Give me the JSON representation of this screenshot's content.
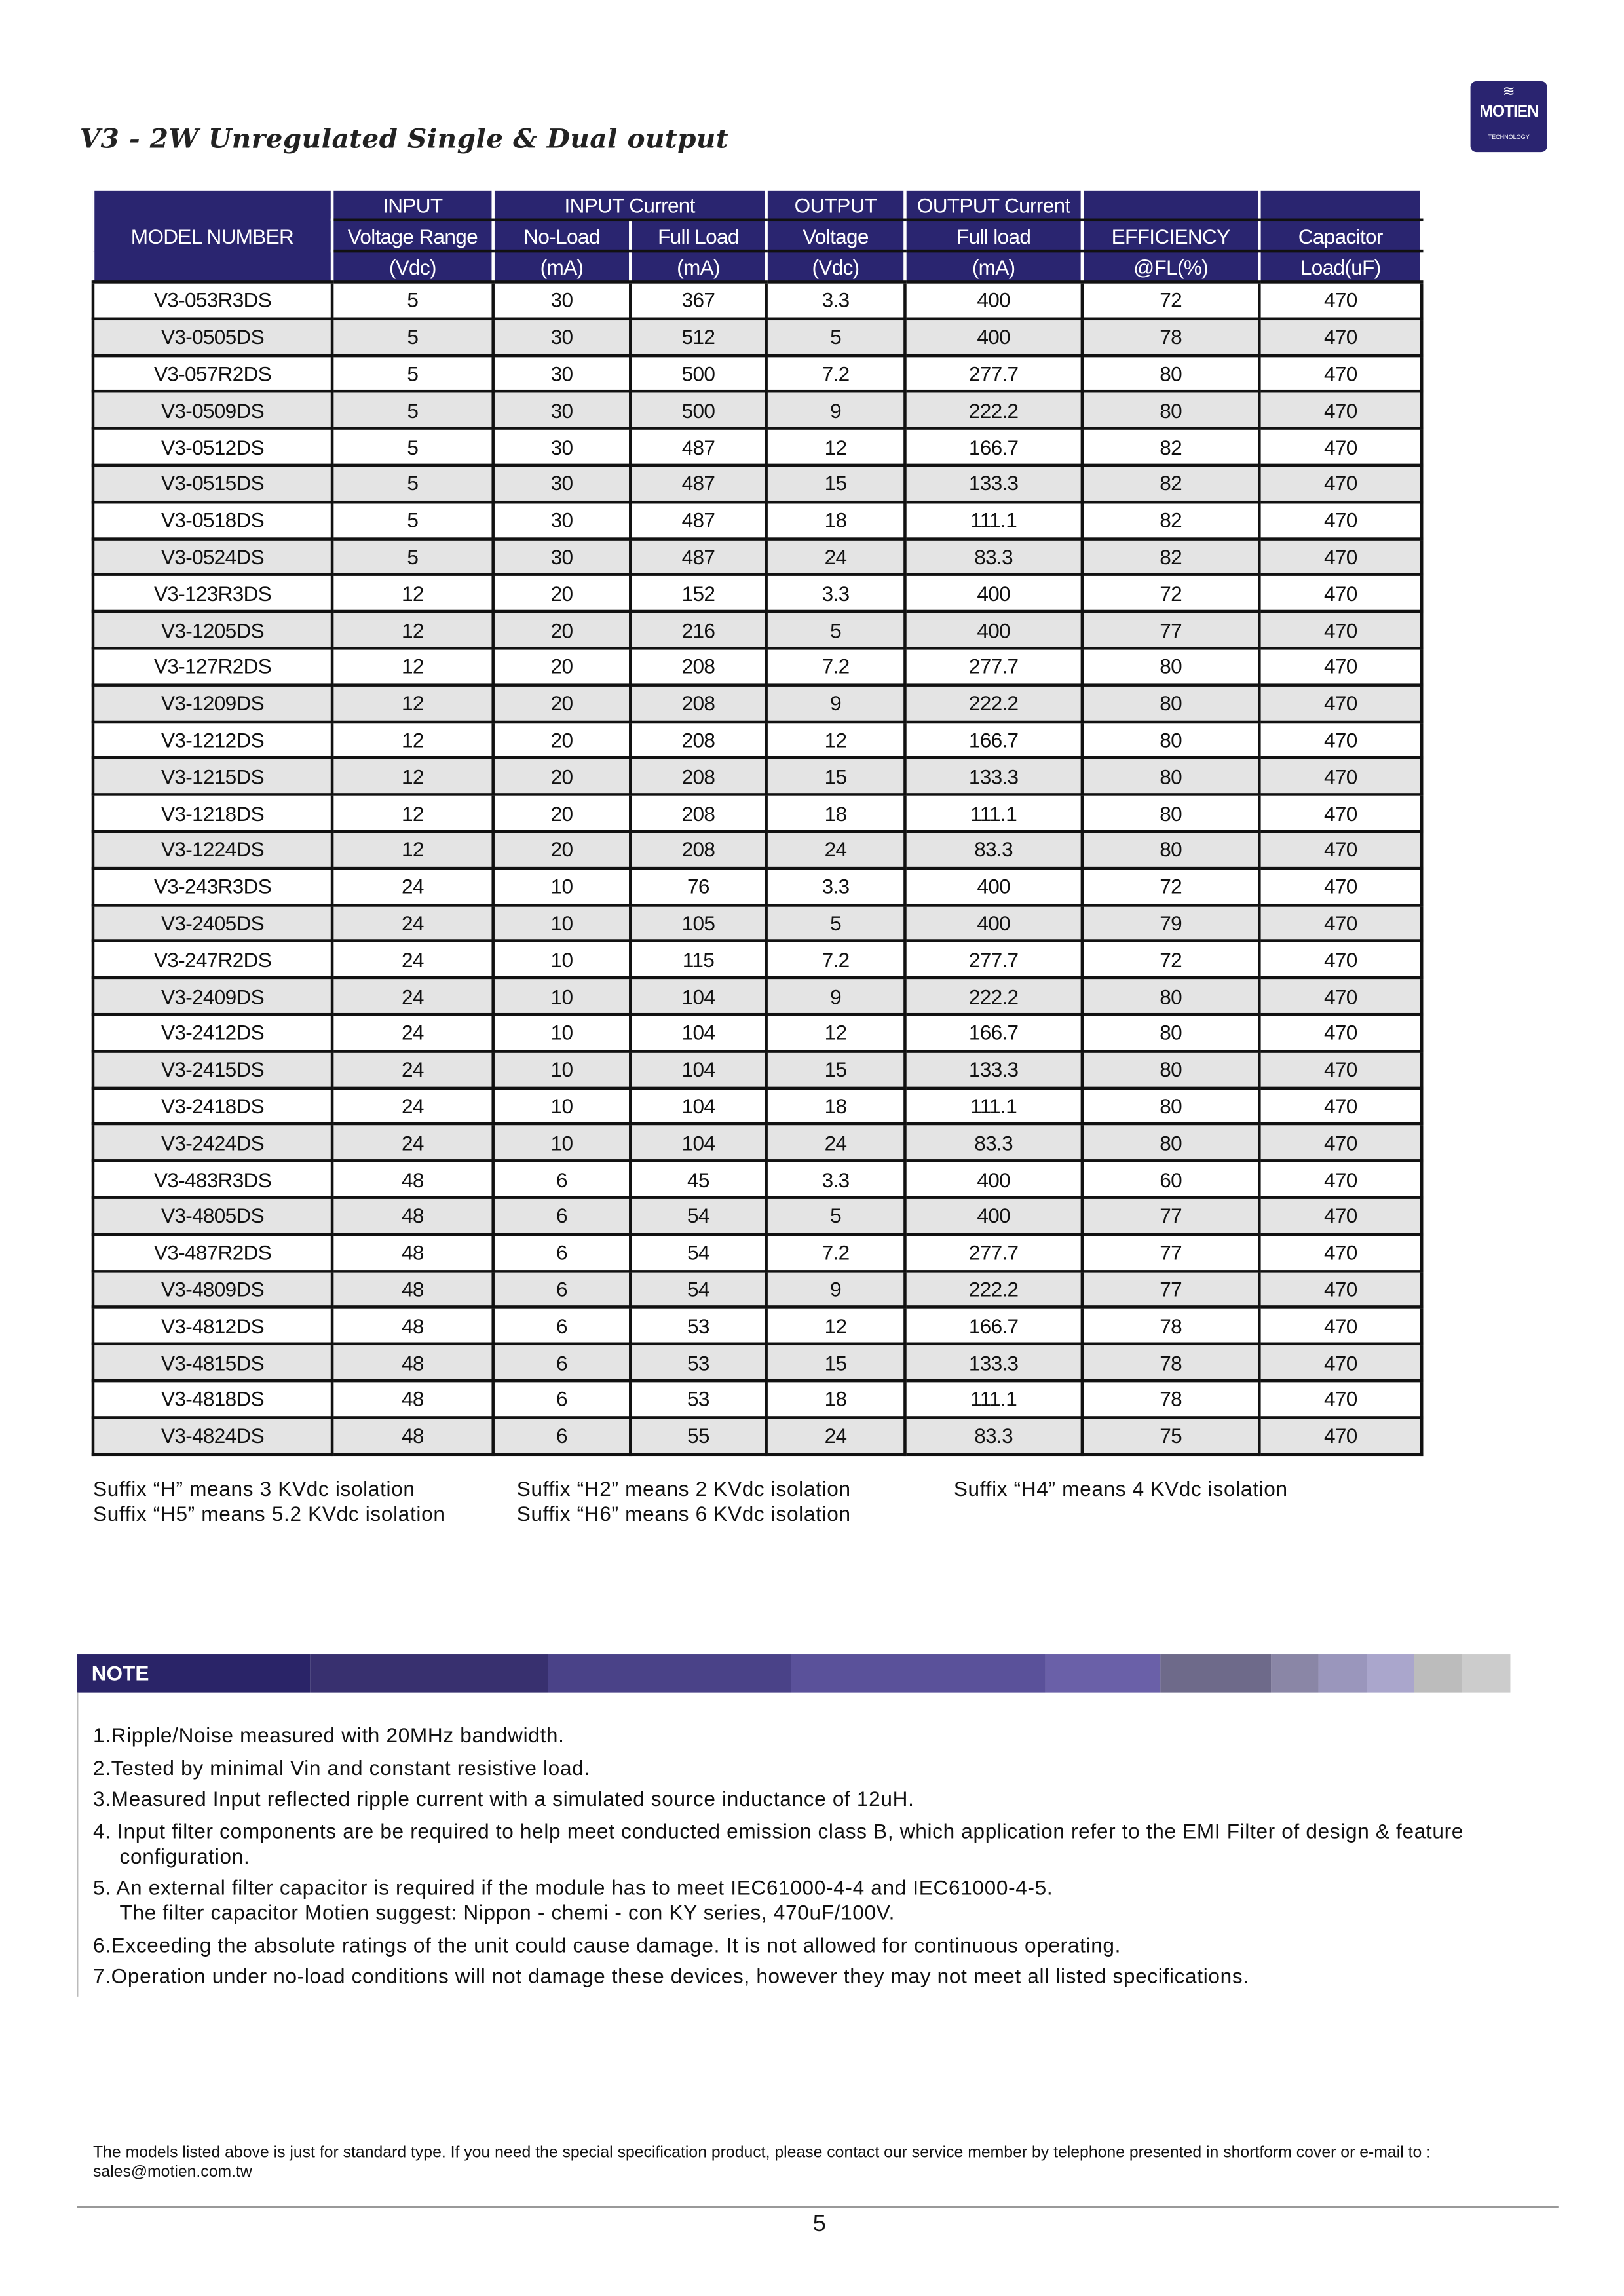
{
  "title": "V3 - 2W Unregulated Single & Dual output",
  "logo": {
    "text": "MOTIEN",
    "sub": "TECHNOLOGY"
  },
  "table": {
    "header_row1": [
      "INPUT",
      "INPUT Current",
      "OUTPUT",
      "OUTPUT Current",
      "",
      ""
    ],
    "header_row2": [
      "MODEL NUMBER",
      "Voltage Range",
      "No-Load",
      "Full Load",
      "Voltage",
      "Full load",
      "EFFICIENCY",
      "Capacitor"
    ],
    "header_row3": [
      "(Vdc)",
      "(mA)",
      "(mA)",
      "(Vdc)",
      "(mA)",
      "@FL(%)",
      "Load(uF)"
    ],
    "rows": [
      [
        "V3-053R3DS",
        "5",
        "30",
        "367",
        "3.3",
        "400",
        "72",
        "470"
      ],
      [
        "V3-0505DS",
        "5",
        "30",
        "512",
        "5",
        "400",
        "78",
        "470"
      ],
      [
        "V3-057R2DS",
        "5",
        "30",
        "500",
        "7.2",
        "277.7",
        "80",
        "470"
      ],
      [
        "V3-0509DS",
        "5",
        "30",
        "500",
        "9",
        "222.2",
        "80",
        "470"
      ],
      [
        "V3-0512DS",
        "5",
        "30",
        "487",
        "12",
        "166.7",
        "82",
        "470"
      ],
      [
        "V3-0515DS",
        "5",
        "30",
        "487",
        "15",
        "133.3",
        "82",
        "470"
      ],
      [
        "V3-0518DS",
        "5",
        "30",
        "487",
        "18",
        "111.1",
        "82",
        "470"
      ],
      [
        "V3-0524DS",
        "5",
        "30",
        "487",
        "24",
        "83.3",
        "82",
        "470"
      ],
      [
        "V3-123R3DS",
        "12",
        "20",
        "152",
        "3.3",
        "400",
        "72",
        "470"
      ],
      [
        "V3-1205DS",
        "12",
        "20",
        "216",
        "5",
        "400",
        "77",
        "470"
      ],
      [
        "V3-127R2DS",
        "12",
        "20",
        "208",
        "7.2",
        "277.7",
        "80",
        "470"
      ],
      [
        "V3-1209DS",
        "12",
        "20",
        "208",
        "9",
        "222.2",
        "80",
        "470"
      ],
      [
        "V3-1212DS",
        "12",
        "20",
        "208",
        "12",
        "166.7",
        "80",
        "470"
      ],
      [
        "V3-1215DS",
        "12",
        "20",
        "208",
        "15",
        "133.3",
        "80",
        "470"
      ],
      [
        "V3-1218DS",
        "12",
        "20",
        "208",
        "18",
        "111.1",
        "80",
        "470"
      ],
      [
        "V3-1224DS",
        "12",
        "20",
        "208",
        "24",
        "83.3",
        "80",
        "470"
      ],
      [
        "V3-243R3DS",
        "24",
        "10",
        "76",
        "3.3",
        "400",
        "72",
        "470"
      ],
      [
        "V3-2405DS",
        "24",
        "10",
        "105",
        "5",
        "400",
        "79",
        "470"
      ],
      [
        "V3-247R2DS",
        "24",
        "10",
        "115",
        "7.2",
        "277.7",
        "72",
        "470"
      ],
      [
        "V3-2409DS",
        "24",
        "10",
        "104",
        "9",
        "222.2",
        "80",
        "470"
      ],
      [
        "V3-2412DS",
        "24",
        "10",
        "104",
        "12",
        "166.7",
        "80",
        "470"
      ],
      [
        "V3-2415DS",
        "24",
        "10",
        "104",
        "15",
        "133.3",
        "80",
        "470"
      ],
      [
        "V3-2418DS",
        "24",
        "10",
        "104",
        "18",
        "111.1",
        "80",
        "470"
      ],
      [
        "V3-2424DS",
        "24",
        "10",
        "104",
        "24",
        "83.3",
        "80",
        "470"
      ],
      [
        "V3-483R3DS",
        "48",
        "6",
        "45",
        "3.3",
        "400",
        "60",
        "470"
      ],
      [
        "V3-4805DS",
        "48",
        "6",
        "54",
        "5",
        "400",
        "77",
        "470"
      ],
      [
        "V3-487R2DS",
        "48",
        "6",
        "54",
        "7.2",
        "277.7",
        "77",
        "470"
      ],
      [
        "V3-4809DS",
        "48",
        "6",
        "54",
        "9",
        "222.2",
        "77",
        "470"
      ],
      [
        "V3-4812DS",
        "48",
        "6",
        "53",
        "12",
        "166.7",
        "78",
        "470"
      ],
      [
        "V3-4815DS",
        "48",
        "6",
        "53",
        "15",
        "133.3",
        "78",
        "470"
      ],
      [
        "V3-4818DS",
        "48",
        "6",
        "53",
        "18",
        "111.1",
        "78",
        "470"
      ],
      [
        "V3-4824DS",
        "48",
        "6",
        "55",
        "24",
        "83.3",
        "75",
        "470"
      ]
    ]
  },
  "suffixes": [
    "Suffix “H” means 3 KVdc isolation",
    "Suffix “H2” means 2 KVdc isolation",
    "Suffix “H4” means 4 KVdc isolation",
    "Suffix “H5” means 5.2 KVdc isolation",
    "Suffix “H6” means 6 KVdc isolation"
  ],
  "note": {
    "label": "NOTE",
    "colors": [
      "#2a2468",
      "#38306f",
      "#4a4288",
      "#5a519a",
      "#6a60a8",
      "#6e6a8a",
      "#8a86a6",
      "#9a96bc",
      "#aaa6cc",
      "#bcbcbc",
      "#cccccc"
    ],
    "items": [
      "1.Ripple/Noise measured with 20MHz bandwidth.",
      "2.Tested by minimal Vin and constant resistive load.",
      "3.Measured Input reflected ripple current with a simulated source inductance of 12uH.",
      "4. Input filter components are be required to help meet conducted emission class B,  which application refer to the EMI Filter of design & feature configuration.",
      "5. An external filter capacitor is required if the module has to meet IEC61000-4-4 and IEC61000-4-5.",
      "The filter capacitor Motien suggest: Nippon - chemi - con KY series, 470uF/100V.",
      "6.Exceeding the absolute ratings of the unit could cause damage.  It is not allowed for continuous operating.",
      "7.Operation under no-load conditions will not damage these devices, however they may not meet all listed specifications."
    ]
  },
  "footer": "The models listed above is just for standard type. If you need the special specification product, please contact our service member by telephone presented in shortform cover or e-mail to : sales@motien.com.tw",
  "page_number": "5"
}
